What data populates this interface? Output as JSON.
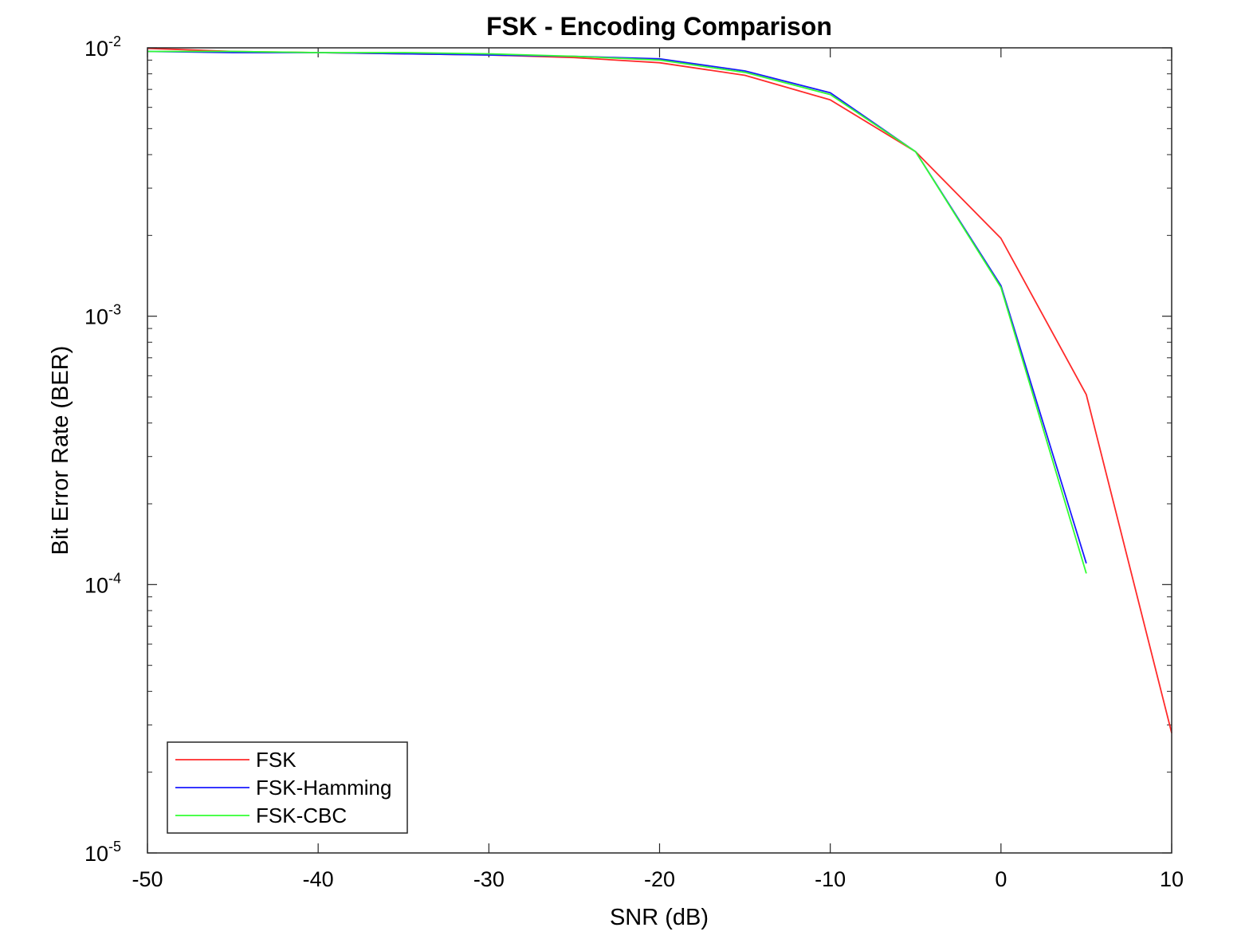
{
  "chart_data": {
    "type": "line",
    "title": "FSK - Encoding Comparison",
    "xlabel": "SNR (dB)",
    "ylabel": "Bit Error Rate (BER)",
    "xlim": [
      -50,
      10
    ],
    "ylim": [
      1e-05,
      0.01
    ],
    "yscale": "log",
    "grid": false,
    "legend_position": "bottom-left",
    "x_ticks": [
      -50,
      -40,
      -30,
      -20,
      -10,
      0,
      10
    ],
    "x_tick_labels": [
      "-50",
      "-40",
      "-30",
      "-20",
      "-10",
      "0",
      "10"
    ],
    "y_ticks": [
      {
        "value": 0.01,
        "base": "10",
        "exponent": "-2"
      },
      {
        "value": 0.001,
        "base": "10",
        "exponent": "-3"
      },
      {
        "value": 0.0001,
        "base": "10",
        "exponent": "-4"
      },
      {
        "value": 1e-05,
        "base": "10",
        "exponent": "-5"
      }
    ],
    "series": [
      {
        "name": "FSK",
        "color": "#ff2a2a",
        "x": [
          -50,
          -45,
          -40,
          -35,
          -30,
          -25,
          -20,
          -15,
          -10,
          -5,
          0,
          5,
          10
        ],
        "y": [
          0.00995,
          0.0097,
          0.0096,
          0.0095,
          0.0094,
          0.0092,
          0.0088,
          0.0079,
          0.0064,
          0.0041,
          0.00195,
          0.00051,
          2.8e-05
        ]
      },
      {
        "name": "FSK-Hamming",
        "color": "#1a1aff",
        "x": [
          -50,
          -45,
          -40,
          -35,
          -30,
          -25,
          -20,
          -15,
          -10,
          -5,
          0,
          5
        ],
        "y": [
          0.0097,
          0.0096,
          0.0096,
          0.0095,
          0.0094,
          0.0093,
          0.0091,
          0.0082,
          0.0068,
          0.0041,
          0.0013,
          0.00012
        ]
      },
      {
        "name": "FSK-CBC",
        "color": "#33ff33",
        "x": [
          -50,
          -45,
          -40,
          -35,
          -30,
          -25,
          -20,
          -15,
          -10,
          -5,
          0,
          5
        ],
        "y": [
          0.0097,
          0.0097,
          0.0096,
          0.0096,
          0.0095,
          0.0093,
          0.009,
          0.0081,
          0.0067,
          0.0041,
          0.00128,
          0.00011
        ]
      }
    ]
  }
}
